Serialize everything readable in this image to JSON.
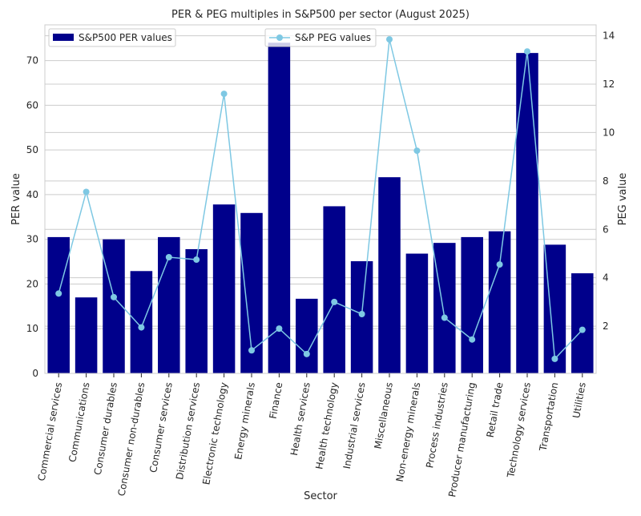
{
  "chart_data": {
    "type": "bar",
    "title": "PER & PEG multiples in S&P500 per sector (August 2025)",
    "xlabel": "Sector",
    "ylabel": "PER value",
    "y2label": "PEG value",
    "ylim": [
      0,
      78
    ],
    "y2lim": [
      0.05,
      14.45
    ],
    "yticks": [
      0,
      10,
      20,
      30,
      40,
      50,
      60,
      70
    ],
    "y2ticks": [
      2,
      4,
      6,
      8,
      10,
      12,
      14
    ],
    "grid": true,
    "categories": [
      "Commercial services",
      "Communications",
      "Consumer durables",
      "Consumer non-durables",
      "Consumer services",
      "Distribution services",
      "Electronic technology",
      "Energy minerals",
      "Finance",
      "Health services",
      "Health technology",
      "Industrial services",
      "Miscellaneous",
      "Non-energy minerals",
      "Process industries",
      "Producer manufacturing",
      "Retail trade",
      "Technology services",
      "Transportation",
      "Utilities"
    ],
    "series": [
      {
        "name": "S&P500 PER values",
        "axis": "left",
        "kind": "bar",
        "color": "#00008b",
        "values": [
          30.5,
          17.0,
          30.0,
          22.9,
          30.5,
          27.8,
          37.8,
          35.9,
          74.0,
          16.7,
          37.4,
          25.1,
          43.9,
          26.8,
          29.2,
          30.5,
          31.8,
          71.7,
          28.8,
          22.4
        ]
      },
      {
        "name": "S&P PEG values",
        "axis": "right",
        "kind": "line",
        "color": "#7ec8e3",
        "values": [
          3.35,
          7.55,
          3.2,
          1.95,
          4.85,
          4.75,
          11.6,
          1.0,
          1.9,
          0.85,
          3.0,
          2.5,
          13.85,
          9.25,
          2.35,
          1.45,
          4.55,
          13.35,
          0.65,
          1.85
        ]
      }
    ],
    "legend_placement": [
      "upper left",
      "upper center"
    ]
  }
}
